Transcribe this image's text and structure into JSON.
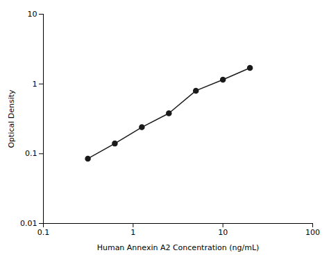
{
  "chart_data": {
    "type": "line",
    "x": [
      0.313,
      0.625,
      1.25,
      2.5,
      5.0,
      10.0,
      20.0
    ],
    "values": [
      0.085,
      0.14,
      0.24,
      0.38,
      0.8,
      1.15,
      1.7
    ],
    "xlabel": "Human Annexin A2 Concentration (ng/mL)",
    "ylabel": "Optical Density",
    "xlim": [
      0.1,
      100
    ],
    "ylim": [
      0.01,
      10
    ],
    "xticks": [
      0.1,
      1,
      10,
      100
    ],
    "yticks": [
      0.01,
      0.1,
      1,
      10
    ],
    "log": true,
    "grid": false,
    "color": "#1a1a1a",
    "marker": "circle"
  }
}
